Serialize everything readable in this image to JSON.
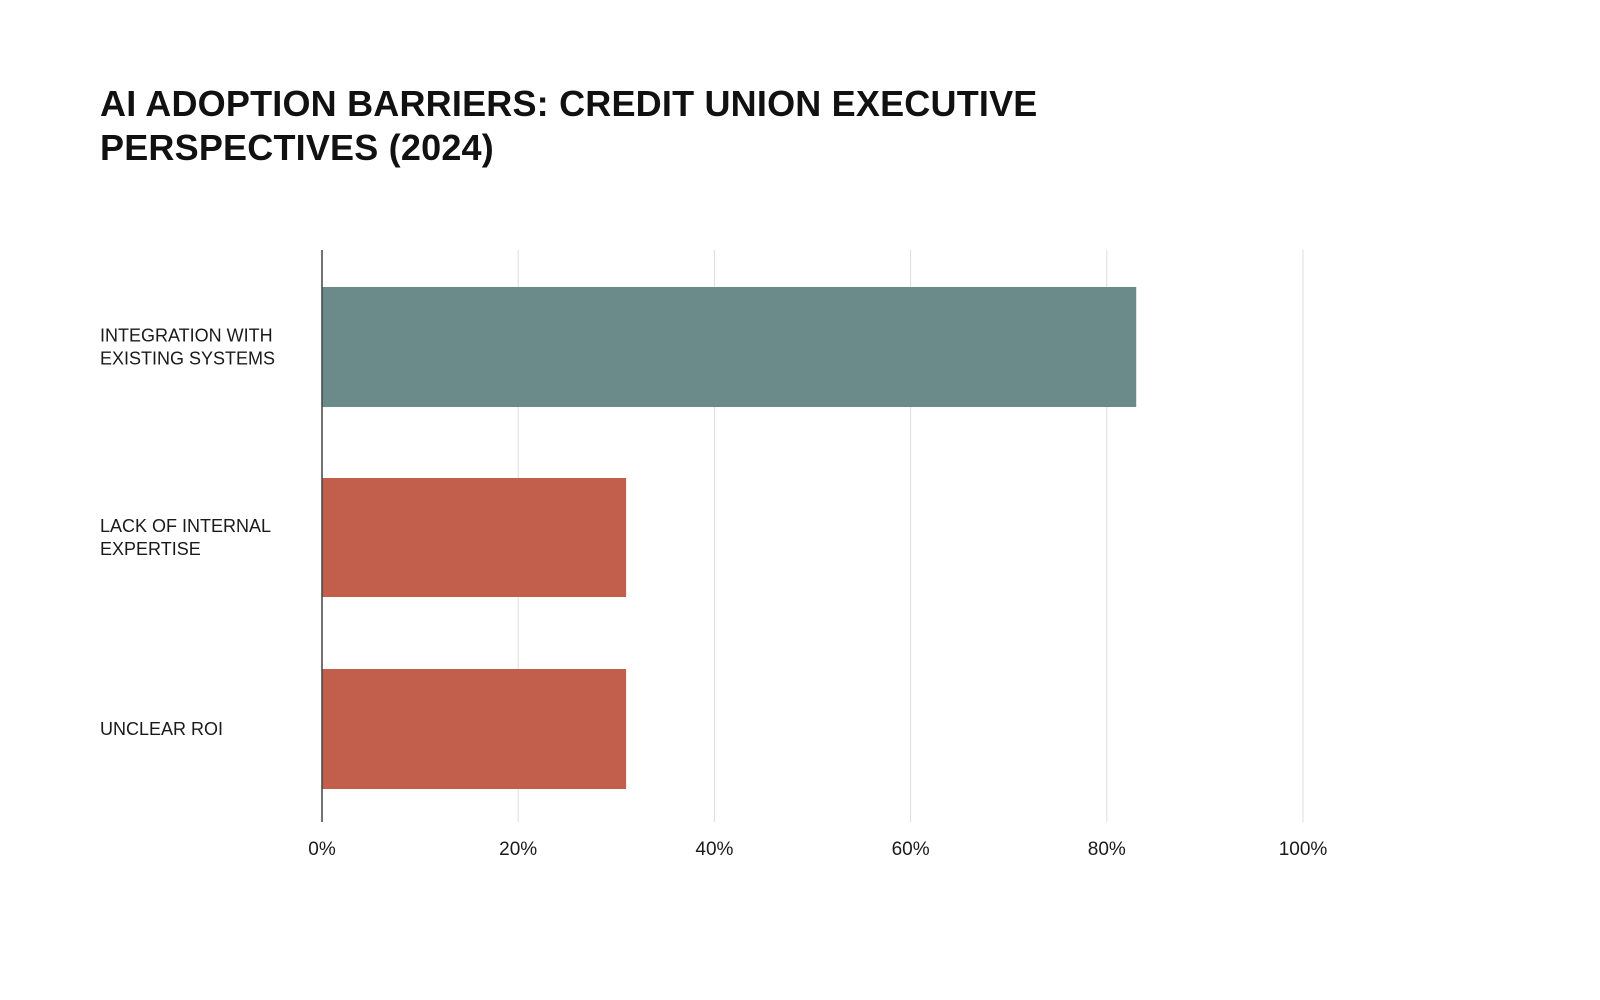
{
  "chart_data": {
    "type": "bar",
    "orientation": "horizontal",
    "title": "AI ADOPTION BARRIERS: CREDIT UNION EXECUTIVE PERSPECTIVES (2024)",
    "categories": [
      [
        "INTEGRATION WITH",
        "EXISTING SYSTEMS"
      ],
      [
        "LACK OF INTERNAL",
        "EXPERTISE"
      ],
      [
        "UNCLEAR ROI"
      ]
    ],
    "values": [
      83,
      31,
      31
    ],
    "colors": [
      "#6b8a8a",
      "#c25e4c",
      "#c25e4c"
    ],
    "xlim": [
      0,
      100
    ],
    "xticks": [
      0,
      20,
      40,
      60,
      80,
      100
    ],
    "xtick_labels": [
      "0%",
      "20%",
      "40%",
      "60%",
      "80%",
      "100%"
    ],
    "grid": "vertical",
    "legend": "none",
    "gridline_color": "#dddddd",
    "axis_color": "#444444"
  }
}
